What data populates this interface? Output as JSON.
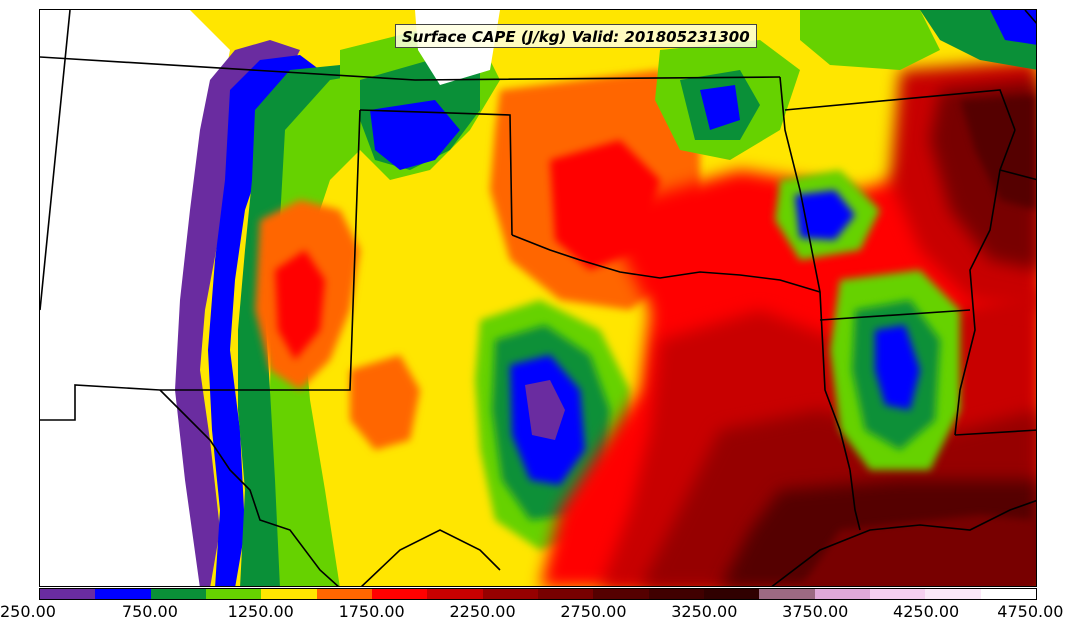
{
  "title": "Surface CAPE (J/kg) Valid: 201805231300",
  "colorbar": {
    "levels": [
      250,
      500,
      750,
      1000,
      1250,
      1500,
      1750,
      2000,
      2250,
      2500,
      2750,
      3000,
      3250,
      3500,
      3750,
      4000,
      4250,
      4500,
      4750
    ],
    "colors": [
      "#6a2ca0",
      "#0000ff",
      "#0a9038",
      "#66d200",
      "#ffe600",
      "#ff6600",
      "#ff0000",
      "#c80000",
      "#960000",
      "#780000",
      "#550000",
      "#400000",
      "#300000",
      "#9c6a82",
      "#e0a8d8",
      "#f6d0f0",
      "#fbe8f8",
      "#ffffff"
    ],
    "tick_labels": [
      "250.00",
      "750.00",
      "1250.00",
      "1750.00",
      "2250.00",
      "2750.00",
      "3250.00",
      "3750.00",
      "4250.00",
      "4750.00"
    ]
  }
}
